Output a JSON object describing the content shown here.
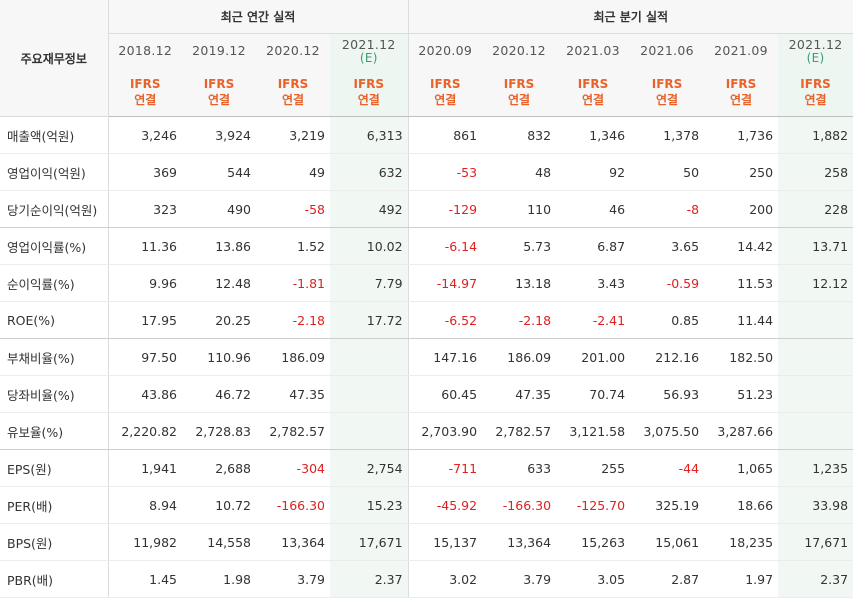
{
  "header": {
    "corner_label": "주요재무정보",
    "annual_title": "최근 연간 실적",
    "quarter_title": "최근 분기 실적",
    "periods": [
      {
        "label": "2018.12",
        "est": ""
      },
      {
        "label": "2019.12",
        "est": ""
      },
      {
        "label": "2020.12",
        "est": ""
      },
      {
        "label": "2021.12",
        "est": "(E)"
      },
      {
        "label": "2020.09",
        "est": ""
      },
      {
        "label": "2020.12",
        "est": ""
      },
      {
        "label": "2021.03",
        "est": ""
      },
      {
        "label": "2021.06",
        "est": ""
      },
      {
        "label": "2021.09",
        "est": ""
      },
      {
        "label": "2021.12",
        "est": "(E)"
      }
    ],
    "ifrs_label": "IFRS",
    "consol_label": "연결"
  },
  "rows": [
    {
      "label": "매출액(억원)",
      "values": [
        "3,246",
        "3,924",
        "3,219",
        "6,313",
        "861",
        "832",
        "1,346",
        "1,378",
        "1,736",
        "1,882"
      ]
    },
    {
      "label": "영업이익(억원)",
      "values": [
        "369",
        "544",
        "49",
        "632",
        "-53",
        "48",
        "92",
        "50",
        "250",
        "258"
      ]
    },
    {
      "label": "당기순이익(억원)",
      "values": [
        "323",
        "490",
        "-58",
        "492",
        "-129",
        "110",
        "46",
        "-8",
        "200",
        "228"
      ]
    },
    {
      "label": "영업이익률(%)",
      "values": [
        "11.36",
        "13.86",
        "1.52",
        "10.02",
        "-6.14",
        "5.73",
        "6.87",
        "3.65",
        "14.42",
        "13.71"
      ]
    },
    {
      "label": "순이익률(%)",
      "values": [
        "9.96",
        "12.48",
        "-1.81",
        "7.79",
        "-14.97",
        "13.18",
        "3.43",
        "-0.59",
        "11.53",
        "12.12"
      ]
    },
    {
      "label": "ROE(%)",
      "values": [
        "17.95",
        "20.25",
        "-2.18",
        "17.72",
        "-6.52",
        "-2.18",
        "-2.41",
        "0.85",
        "11.44",
        ""
      ]
    },
    {
      "label": "부채비율(%)",
      "values": [
        "97.50",
        "110.96",
        "186.09",
        "",
        "147.16",
        "186.09",
        "201.00",
        "212.16",
        "182.50",
        ""
      ]
    },
    {
      "label": "당좌비율(%)",
      "values": [
        "43.86",
        "46.72",
        "47.35",
        "",
        "60.45",
        "47.35",
        "70.74",
        "56.93",
        "51.23",
        ""
      ]
    },
    {
      "label": "유보율(%)",
      "values": [
        "2,220.82",
        "2,728.83",
        "2,782.57",
        "",
        "2,703.90",
        "2,782.57",
        "3,121.58",
        "3,075.50",
        "3,287.66",
        ""
      ]
    },
    {
      "label": "EPS(원)",
      "values": [
        "1,941",
        "2,688",
        "-304",
        "2,754",
        "-711",
        "633",
        "255",
        "-44",
        "1,065",
        "1,235"
      ]
    },
    {
      "label": "PER(배)",
      "values": [
        "8.94",
        "10.72",
        "-166.30",
        "15.23",
        "-45.92",
        "-166.30",
        "-125.70",
        "325.19",
        "18.66",
        "33.98"
      ]
    },
    {
      "label": "BPS(원)",
      "values": [
        "11,982",
        "14,558",
        "13,364",
        "17,671",
        "15,137",
        "13,364",
        "15,263",
        "15,061",
        "18,235",
        "17,671"
      ]
    },
    {
      "label": "PBR(배)",
      "values": [
        "1.45",
        "1.98",
        "3.79",
        "2.37",
        "3.02",
        "3.79",
        "3.05",
        "2.87",
        "1.97",
        "2.37"
      ]
    }
  ]
}
